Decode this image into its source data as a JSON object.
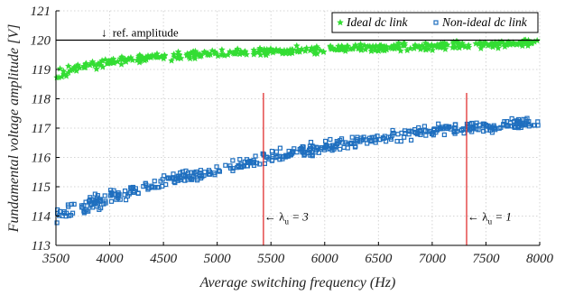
{
  "chart_data": {
    "type": "scatter",
    "xlabel": "Average switching frequency (Hz)",
    "ylabel": "Fundamental voltage amplitude [V]",
    "xlim": [
      3500,
      8000
    ],
    "ylim": [
      113,
      121
    ],
    "xticks": [
      "3500",
      "4000",
      "4500",
      "5000",
      "5500",
      "6000",
      "6500",
      "7000",
      "7500",
      "8000"
    ],
    "yticks": [
      "113",
      "114",
      "115",
      "116",
      "117",
      "118",
      "119",
      "120",
      "121"
    ],
    "grid": true,
    "legend_position": "top-right",
    "series": [
      {
        "name": "Ideal dc link",
        "marker": "star",
        "color": "#33dd33",
        "trend": {
          "x": [
            3500,
            3600,
            3800,
            4200,
            5000,
            6000,
            7000,
            8000
          ],
          "y": [
            118.8,
            118.98,
            119.15,
            119.35,
            119.55,
            119.7,
            119.8,
            119.9
          ]
        },
        "spread": 0.18,
        "count": 420
      },
      {
        "name": "Non-ideal dc link",
        "marker": "square",
        "color": "#1f6fbf",
        "trend": {
          "x": [
            3500,
            4000,
            4500,
            5000,
            5500,
            6000,
            6500,
            7000,
            7500,
            8000
          ],
          "y": [
            114.0,
            114.6,
            115.15,
            115.55,
            116.0,
            116.35,
            116.65,
            116.9,
            117.05,
            117.2
          ]
        },
        "spread": 0.3,
        "count": 480
      }
    ],
    "reference_line": {
      "y": 120,
      "label": "ref. amplitude",
      "arrow": "↓"
    },
    "vertical_lines": [
      {
        "x": 5430,
        "color": "#e03030",
        "label_prefix": "← λ",
        "label_sub": "u",
        "label_suffix": " = 3"
      },
      {
        "x": 7320,
        "color": "#e03030",
        "label_prefix": "← λ",
        "label_sub": "u",
        "label_suffix": " = 1"
      }
    ]
  }
}
